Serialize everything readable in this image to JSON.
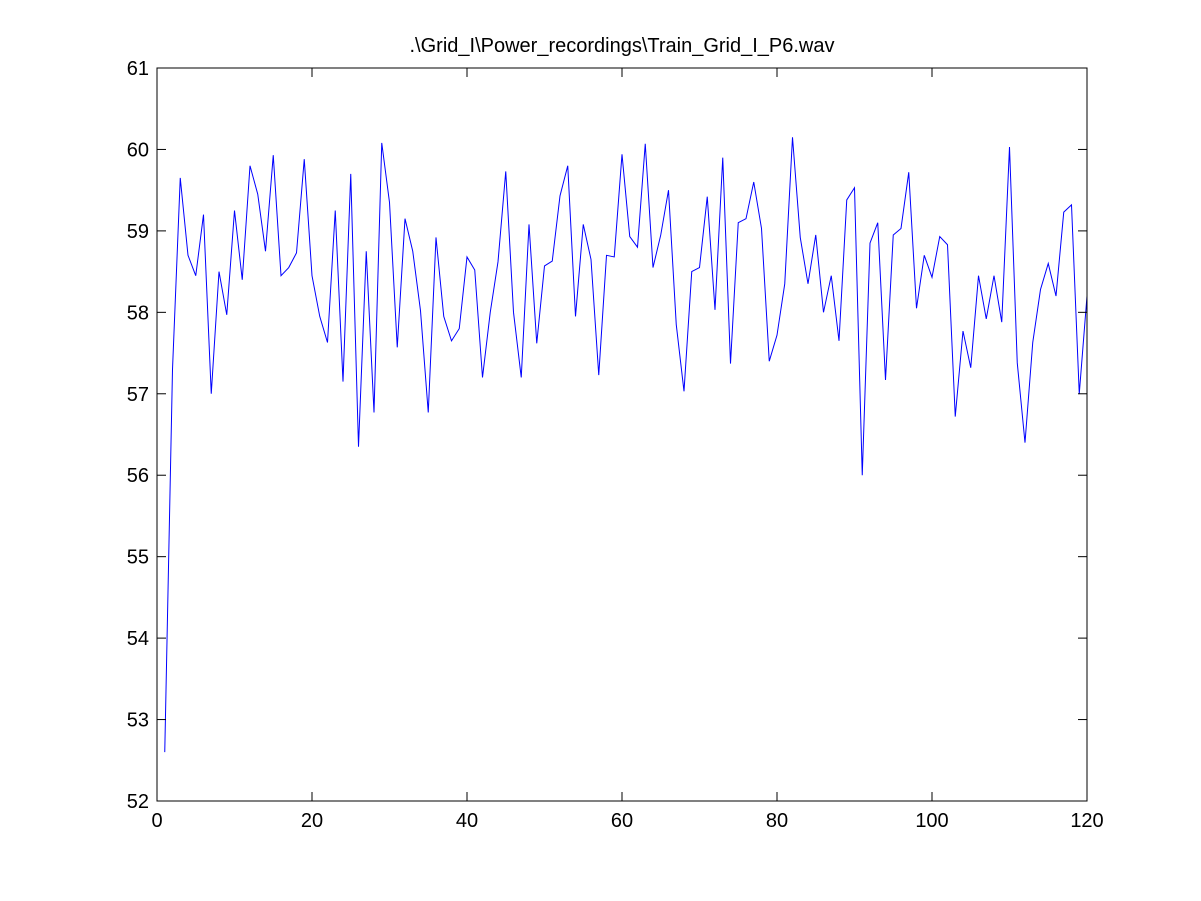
{
  "chart_data": {
    "type": "line",
    "title": ".\\Grid_I\\Power_recordings\\Train_Grid_I_P6.wav",
    "xlabel": "",
    "ylabel": "",
    "xlim": [
      0,
      120
    ],
    "ylim": [
      52,
      61
    ],
    "xticks": [
      0,
      20,
      40,
      60,
      80,
      100,
      120
    ],
    "yticks": [
      52,
      53,
      54,
      55,
      56,
      57,
      58,
      59,
      60,
      61
    ],
    "xtick_labels": [
      "0",
      "20",
      "40",
      "60",
      "80",
      "100",
      "120"
    ],
    "ytick_labels": [
      "52",
      "53",
      "54",
      "55",
      "56",
      "57",
      "58",
      "59",
      "60",
      "61"
    ],
    "grid": false,
    "line_color": "#0000ff",
    "x": [
      1,
      2,
      3,
      4,
      5,
      6,
      7,
      8,
      9,
      10,
      11,
      12,
      13,
      14,
      15,
      16,
      17,
      18,
      19,
      20,
      21,
      22,
      23,
      24,
      25,
      26,
      27,
      28,
      29,
      30,
      31,
      32,
      33,
      34,
      35,
      36,
      37,
      38,
      39,
      40,
      41,
      42,
      43,
      44,
      45,
      46,
      47,
      48,
      49,
      50,
      51,
      52,
      53,
      54,
      55,
      56,
      57,
      58,
      59,
      60,
      61,
      62,
      63,
      64,
      65,
      66,
      67,
      68,
      69,
      70,
      71,
      72,
      73,
      74,
      75,
      76,
      77,
      78,
      79,
      80,
      81,
      82,
      83,
      84,
      85,
      86,
      87,
      88,
      89,
      90,
      91,
      92,
      93,
      94,
      95,
      96,
      97,
      98,
      99,
      100,
      101,
      102,
      103,
      104,
      105,
      106,
      107,
      108,
      109,
      110,
      111,
      112,
      113,
      114,
      115,
      116,
      117,
      118,
      119,
      120
    ],
    "y": [
      52.6,
      57.3,
      59.65,
      58.7,
      58.45,
      59.2,
      57.0,
      58.5,
      57.97,
      59.25,
      58.4,
      59.8,
      59.45,
      58.75,
      59.93,
      58.45,
      58.55,
      58.73,
      59.88,
      58.45,
      57.95,
      57.63,
      59.25,
      57.15,
      59.7,
      56.35,
      58.75,
      56.77,
      60.08,
      59.35,
      57.57,
      59.15,
      58.75,
      58.02,
      56.77,
      58.92,
      57.95,
      57.65,
      57.8,
      58.68,
      58.52,
      57.2,
      58.0,
      58.62,
      59.73,
      58.0,
      57.2,
      59.08,
      57.62,
      58.57,
      58.63,
      59.43,
      59.8,
      57.95,
      59.08,
      58.65,
      57.23,
      58.7,
      58.68,
      59.94,
      58.93,
      58.8,
      60.07,
      58.55,
      58.95,
      59.5,
      57.85,
      57.03,
      58.5,
      58.55,
      59.42,
      58.03,
      59.9,
      57.37,
      59.1,
      59.15,
      59.6,
      59.03,
      57.4,
      57.72,
      58.35,
      60.15,
      58.92,
      58.35,
      58.95,
      58.0,
      58.45,
      57.65,
      59.38,
      59.53,
      56.0,
      58.85,
      59.1,
      57.17,
      58.95,
      59.03,
      59.72,
      58.05,
      58.7,
      58.43,
      58.93,
      58.83,
      56.72,
      57.77,
      57.32,
      58.45,
      57.92,
      58.45,
      57.88,
      60.03,
      57.38,
      56.4,
      57.63,
      58.28,
      58.6,
      58.2,
      59.23,
      59.32,
      57.0,
      58.2
    ]
  }
}
